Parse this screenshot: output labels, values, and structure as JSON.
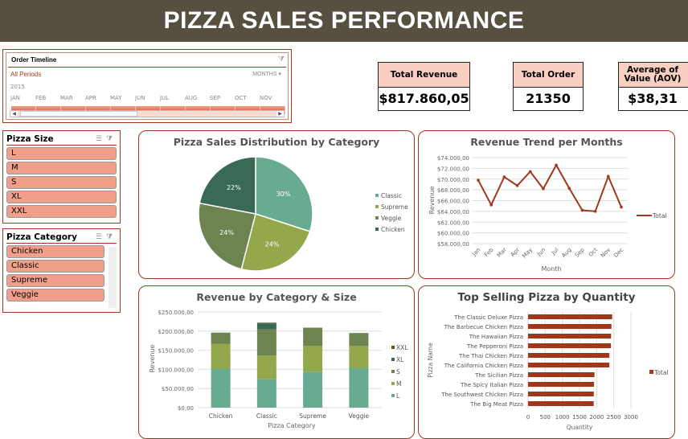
{
  "title": "PIZZA SALES PERFORMANCE",
  "timeline": {
    "title": "Order Timeline",
    "selection": "All Periods",
    "level": "MONTHS",
    "year": "2015",
    "months": [
      "JAN",
      "FEB",
      "MAR",
      "APR",
      "MAY",
      "JUN",
      "JUL",
      "AUG",
      "SEP",
      "OCT",
      "NOV"
    ]
  },
  "size_slicer": {
    "title": "Pizza Size",
    "items": [
      "L",
      "M",
      "S",
      "XL",
      "XXL"
    ]
  },
  "category_slicer": {
    "title": "Pizza Category",
    "items": [
      "Chicken",
      "Classic",
      "Supreme",
      "Veggie"
    ]
  },
  "kpis": [
    {
      "label": "Total Revenue",
      "value": "$817.860,05"
    },
    {
      "label": "Total Order",
      "value": "21350"
    },
    {
      "label": "Average of Value (AOV)",
      "value": "$38,31"
    }
  ],
  "colors": {
    "header": "#575040",
    "accent": "#a0391c",
    "slicer_item": "#f0a08a",
    "kpi_header": "#f9cfc2"
  },
  "chart_data": [
    {
      "type": "pie",
      "title": "Pizza Sales Distribution by Category",
      "categories": [
        "Classic",
        "Supreme",
        "Veggie",
        "Chicken"
      ],
      "values": [
        30,
        24,
        24,
        22
      ],
      "labels": [
        "30%",
        "24%",
        "24%",
        "22%"
      ],
      "colors": [
        "#68ab90",
        "#93a84a",
        "#6e8450",
        "#386a55"
      ],
      "legend": "right"
    },
    {
      "type": "line",
      "title": "Revenue Trend per Months",
      "xlabel": "Month",
      "ylabel": "Revenue",
      "categories": [
        "Jan",
        "Feb",
        "Mar",
        "Apr",
        "May",
        "Jun",
        "Jul",
        "Aug",
        "Sep",
        "Oct",
        "Nov",
        "Dec"
      ],
      "series": [
        {
          "name": "Total",
          "values": [
            69800,
            65200,
            70400,
            68800,
            71400,
            68200,
            72600,
            68300,
            64200,
            64000,
            70500,
            64800
          ],
          "color": "#a0391c"
        }
      ],
      "ylim": [
        58000,
        74000
      ],
      "yticks": [
        "$58.000,00",
        "$60.000,00",
        "$62.000,00",
        "$64.000,00",
        "$66.000,00",
        "$68.000,00",
        "$70.000,00",
        "$72.000,00",
        "$74.000,00"
      ],
      "grid": true,
      "legend": "right"
    },
    {
      "type": "bar",
      "stacked": true,
      "title": "Revenue by Category & Size",
      "xlabel": "Pizza Category",
      "ylabel": "Revenue",
      "categories": [
        "Chicken",
        "Classic",
        "Supreme",
        "Veggie"
      ],
      "series": [
        {
          "name": "L",
          "values": [
            102000,
            75000,
            94000,
            104000
          ],
          "color": "#68ab90"
        },
        {
          "name": "M",
          "values": [
            65000,
            61000,
            67000,
            57000
          ],
          "color": "#93a84a"
        },
        {
          "name": "S",
          "values": [
            29000,
            69000,
            48000,
            34000
          ],
          "color": "#6e8450"
        },
        {
          "name": "XL",
          "values": [
            0,
            15000,
            0,
            0
          ],
          "color": "#386a55"
        },
        {
          "name": "XXL",
          "values": [
            0,
            2000,
            0,
            0
          ],
          "color": "#4f5e23"
        }
      ],
      "ylim": [
        0,
        250000
      ],
      "yticks": [
        "$0,00",
        "$50.000,00",
        "$100.000,00",
        "$150.000,00",
        "$200.000,00",
        "$250.000,00"
      ],
      "grid": true,
      "legend": "right"
    },
    {
      "type": "bar",
      "orientation": "horizontal",
      "title": "Top Selling Pizza by Quantity",
      "xlabel": "Quantity",
      "ylabel": "Pizza Name",
      "categories": [
        "The Classic Deluxe Pizza",
        "The Barbecue Chicken Pizza",
        "The Hawaiian Pizza",
        "The Pepperoni Pizza",
        "The Thai Chicken Pizza",
        "The California Chicken Pizza",
        "The Sicilian Pizza",
        "The Spicy Italian Pizza",
        "The Southwest Chicken Pizza",
        "The Big Meat Pizza"
      ],
      "series": [
        {
          "name": "Total",
          "values": [
            2453,
            2432,
            2422,
            2418,
            2371,
            2370,
            1938,
            1924,
            1917,
            1914
          ],
          "color": "#a0391c"
        }
      ],
      "xlim": [
        0,
        3000
      ],
      "xticks": [
        "0",
        "500",
        "1000",
        "1500",
        "2000",
        "2500",
        "3000"
      ],
      "grid": true,
      "legend": "right"
    }
  ]
}
